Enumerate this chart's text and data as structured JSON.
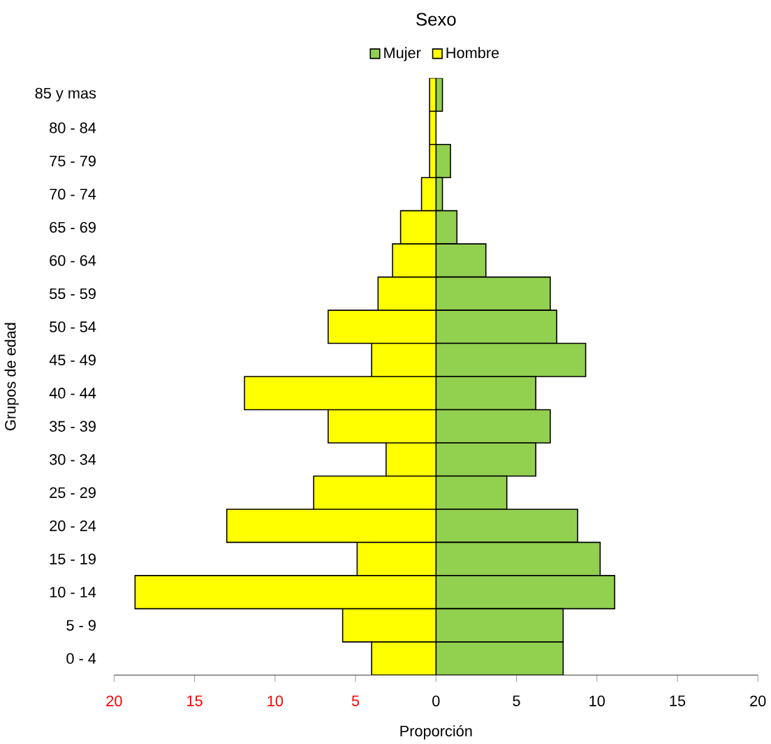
{
  "chart_data": {
    "type": "bar",
    "orientation": "horizontal",
    "stacked": true,
    "legend_title": "Sexo",
    "legend": "top",
    "xlabel": "Proporción",
    "ylabel": "Grupos de edad",
    "categories": [
      "85 y mas",
      "80 - 84",
      "75 - 79",
      "70 - 74",
      "65 - 69",
      "60 - 64",
      "55 - 59",
      "50 - 54",
      "45 - 49",
      "40 - 44",
      "35 - 39",
      "30 - 34",
      "25 - 29",
      "20 - 24",
      "15 - 19",
      "10 - 14",
      "5 - 9",
      "0 - 4"
    ],
    "series": [
      {
        "name": "Mujer",
        "color": "#92d050",
        "values": [
          0.4,
          0,
          0.9,
          0.4,
          1.3,
          3.1,
          7.1,
          7.5,
          9.3,
          6.2,
          7.1,
          6.2,
          4.4,
          8.8,
          10.2,
          11.1,
          7.9,
          7.9
        ]
      },
      {
        "name": "Hombre",
        "color": "#ffff00",
        "values": [
          -0.4,
          -0.4,
          -0.4,
          -0.9,
          -2.2,
          -2.7,
          -3.6,
          -6.7,
          -4.0,
          -11.9,
          -6.7,
          -3.1,
          -7.6,
          -13.0,
          -4.9,
          -18.7,
          -5.8,
          -4.0
        ]
      }
    ],
    "xlim": [
      -20,
      20
    ],
    "xticks": [
      {
        "value": -20,
        "label": "20"
      },
      {
        "value": -15,
        "label": "15"
      },
      {
        "value": -10,
        "label": "10"
      },
      {
        "value": -5,
        "label": "5"
      },
      0,
      5,
      10,
      15,
      20
    ]
  }
}
